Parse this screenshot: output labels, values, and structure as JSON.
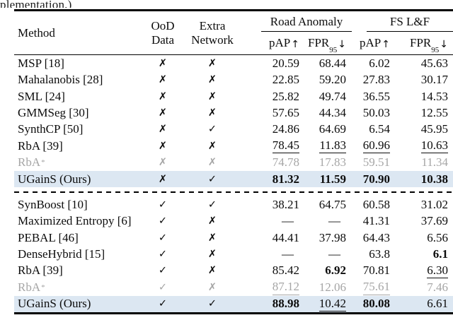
{
  "caption_fragment": "plementation.)",
  "colors": {
    "highlight_row_bg": "#dce7f2",
    "muted_text": "#a6a6a6"
  },
  "icons": {
    "check": "✓",
    "cross": "✗",
    "star": "*",
    "dash": "—",
    "up_arrow": "↑",
    "down_arrow": "↓"
  },
  "table": {
    "headers": {
      "method": "Method",
      "ood_line1": "OoD",
      "ood_line2": "Data",
      "extra_line1": "Extra",
      "extra_line2": "Network",
      "group_road_anomaly": "Road Anomaly",
      "group_fs_lf": "FS L&F",
      "pap": "pAP",
      "fpr": "FPR",
      "fpr_sub": "95"
    },
    "sections": [
      {
        "rows": [
          {
            "method": "MSP [18]",
            "ood": "no",
            "extra": "no",
            "cells": [
              {
                "v": "20.59"
              },
              {
                "v": "68.44"
              },
              {
                "v": "6.02"
              },
              {
                "v": "45.63"
              }
            ]
          },
          {
            "method": "Mahalanobis [28]",
            "ood": "no",
            "extra": "no",
            "cells": [
              {
                "v": "22.85"
              },
              {
                "v": "59.20"
              },
              {
                "v": "27.83"
              },
              {
                "v": "30.17"
              }
            ]
          },
          {
            "method": "SML [24]",
            "ood": "no",
            "extra": "no",
            "cells": [
              {
                "v": "25.82"
              },
              {
                "v": "49.74"
              },
              {
                "v": "36.55"
              },
              {
                "v": "14.53"
              }
            ]
          },
          {
            "method": "GMMSeg [30]",
            "ood": "no",
            "extra": "no",
            "cells": [
              {
                "v": "57.65"
              },
              {
                "v": "44.34"
              },
              {
                "v": "50.03"
              },
              {
                "v": "12.55"
              }
            ]
          },
          {
            "method": "SynthCP [50]",
            "ood": "no",
            "extra": "yes",
            "cells": [
              {
                "v": "24.86"
              },
              {
                "v": "64.69"
              },
              {
                "v": "6.54"
              },
              {
                "v": "45.95"
              }
            ]
          },
          {
            "method": "RbA [39]",
            "ood": "no",
            "extra": "no",
            "cells": [
              {
                "v": "78.45",
                "u": true
              },
              {
                "v": "11.83",
                "u": true
              },
              {
                "v": "60.96",
                "u": true
              },
              {
                "v": "10.63",
                "u": true
              }
            ]
          },
          {
            "method": "RbA",
            "star": true,
            "muted": true,
            "ood": "no",
            "extra": "no",
            "cells": [
              {
                "v": "74.78"
              },
              {
                "v": "17.83"
              },
              {
                "v": "59.51"
              },
              {
                "v": "11.34"
              }
            ]
          },
          {
            "method": "UGainS (Ours)",
            "highlight": true,
            "ood": "no",
            "extra": "yes",
            "cells": [
              {
                "v": "81.32",
                "b": true
              },
              {
                "v": "11.59",
                "b": true
              },
              {
                "v": "70.90",
                "b": true
              },
              {
                "v": "10.38",
                "b": true
              }
            ]
          }
        ]
      },
      {
        "rows": [
          {
            "method": "SynBoost [10]",
            "ood": "yes",
            "extra": "yes",
            "cells": [
              {
                "v": "38.21"
              },
              {
                "v": "64.75"
              },
              {
                "v": "60.58"
              },
              {
                "v": "31.02"
              }
            ]
          },
          {
            "method": "Maximized Entropy [6]",
            "ood": "yes",
            "extra": "no",
            "cells": [
              {
                "v": "—"
              },
              {
                "v": "—"
              },
              {
                "v": "41.31"
              },
              {
                "v": "37.69"
              }
            ]
          },
          {
            "method": "PEBAL [46]",
            "ood": "yes",
            "extra": "no",
            "cells": [
              {
                "v": "44.41"
              },
              {
                "v": "37.98"
              },
              {
                "v": "64.43"
              },
              {
                "v": "6.56"
              }
            ]
          },
          {
            "method": "DenseHybrid [15]",
            "ood": "yes",
            "extra": "no",
            "cells": [
              {
                "v": "—"
              },
              {
                "v": "—"
              },
              {
                "v": "63.8"
              },
              {
                "v": "6.1",
                "b": true
              }
            ]
          },
          {
            "method": "RbA [39]",
            "ood": "yes",
            "extra": "no",
            "cells": [
              {
                "v": "85.42"
              },
              {
                "v": "6.92",
                "b": true
              },
              {
                "v": "70.81"
              },
              {
                "v": "6.30",
                "u": true
              }
            ]
          },
          {
            "method": "RbA",
            "star": true,
            "muted": true,
            "ood": "yes",
            "extra": "no",
            "cells": [
              {
                "v": "87.12",
                "u": true
              },
              {
                "v": "12.06"
              },
              {
                "v": "75.61",
                "u": true
              },
              {
                "v": "7.46"
              }
            ]
          },
          {
            "method": "UGainS (Ours)",
            "highlight": true,
            "ood": "yes",
            "extra": "yes",
            "cells": [
              {
                "v": "88.98",
                "b": true
              },
              {
                "v": "10.42",
                "u": true
              },
              {
                "v": "80.08",
                "b": true
              },
              {
                "v": "6.61"
              }
            ]
          }
        ]
      }
    ]
  }
}
